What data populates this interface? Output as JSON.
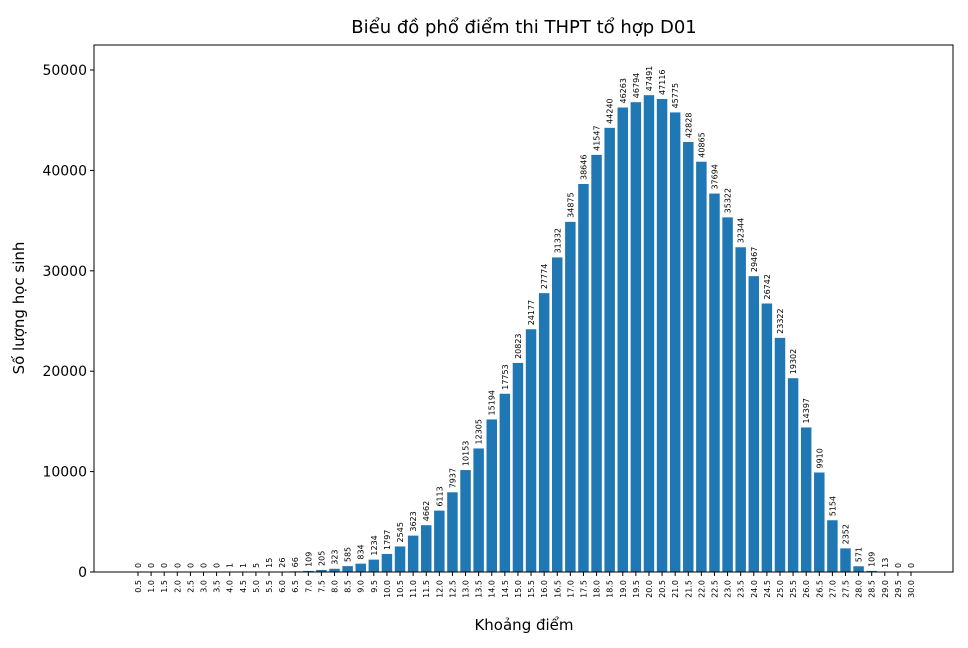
{
  "chart_data": {
    "type": "bar",
    "title": "Biểu đồ phổ điểm thi THPT tổ hợp D01",
    "xlabel": "Khoảng điểm",
    "ylabel": "Số lượng học sinh",
    "categories": [
      "0.5",
      "1.0",
      "1.5",
      "2.0",
      "2.5",
      "3.0",
      "3.5",
      "4.0",
      "4.5",
      "5.0",
      "5.5",
      "6.0",
      "6.5",
      "7.0",
      "7.5",
      "8.0",
      "8.5",
      "9.0",
      "9.5",
      "10.0",
      "10.5",
      "11.0",
      "11.5",
      "12.0",
      "12.5",
      "13.0",
      "13.5",
      "14.0",
      "14.5",
      "15.0",
      "15.5",
      "16.0",
      "16.5",
      "17.0",
      "17.5",
      "18.0",
      "18.5",
      "19.0",
      "19.5",
      "20.0",
      "20.5",
      "21.0",
      "21.5",
      "22.0",
      "22.5",
      "23.0",
      "23.5",
      "24.0",
      "24.5",
      "25.0",
      "25.5",
      "26.0",
      "26.5",
      "27.0",
      "27.5",
      "28.0",
      "28.5",
      "29.0",
      "29.5",
      "30.0"
    ],
    "values": [
      0,
      0,
      0,
      0,
      0,
      0,
      0,
      1,
      1,
      5,
      15,
      26,
      66,
      109,
      205,
      323,
      585,
      834,
      1234,
      1797,
      2545,
      3623,
      4662,
      6113,
      7937,
      10153,
      12305,
      15194,
      17753,
      20823,
      24177,
      27774,
      31332,
      34875,
      38646,
      41547,
      44240,
      46263,
      46794,
      47491,
      47116,
      45775,
      42828,
      40865,
      37694,
      35322,
      32344,
      29467,
      26742,
      23322,
      19302,
      14397,
      9910,
      5154,
      2352,
      571,
      109,
      13,
      0,
      0
    ],
    "yticks": [
      0,
      10000,
      20000,
      30000,
      40000,
      50000
    ],
    "ylim": [
      0,
      52490
    ],
    "bar_color": "#1f77b4",
    "grid": false
  }
}
